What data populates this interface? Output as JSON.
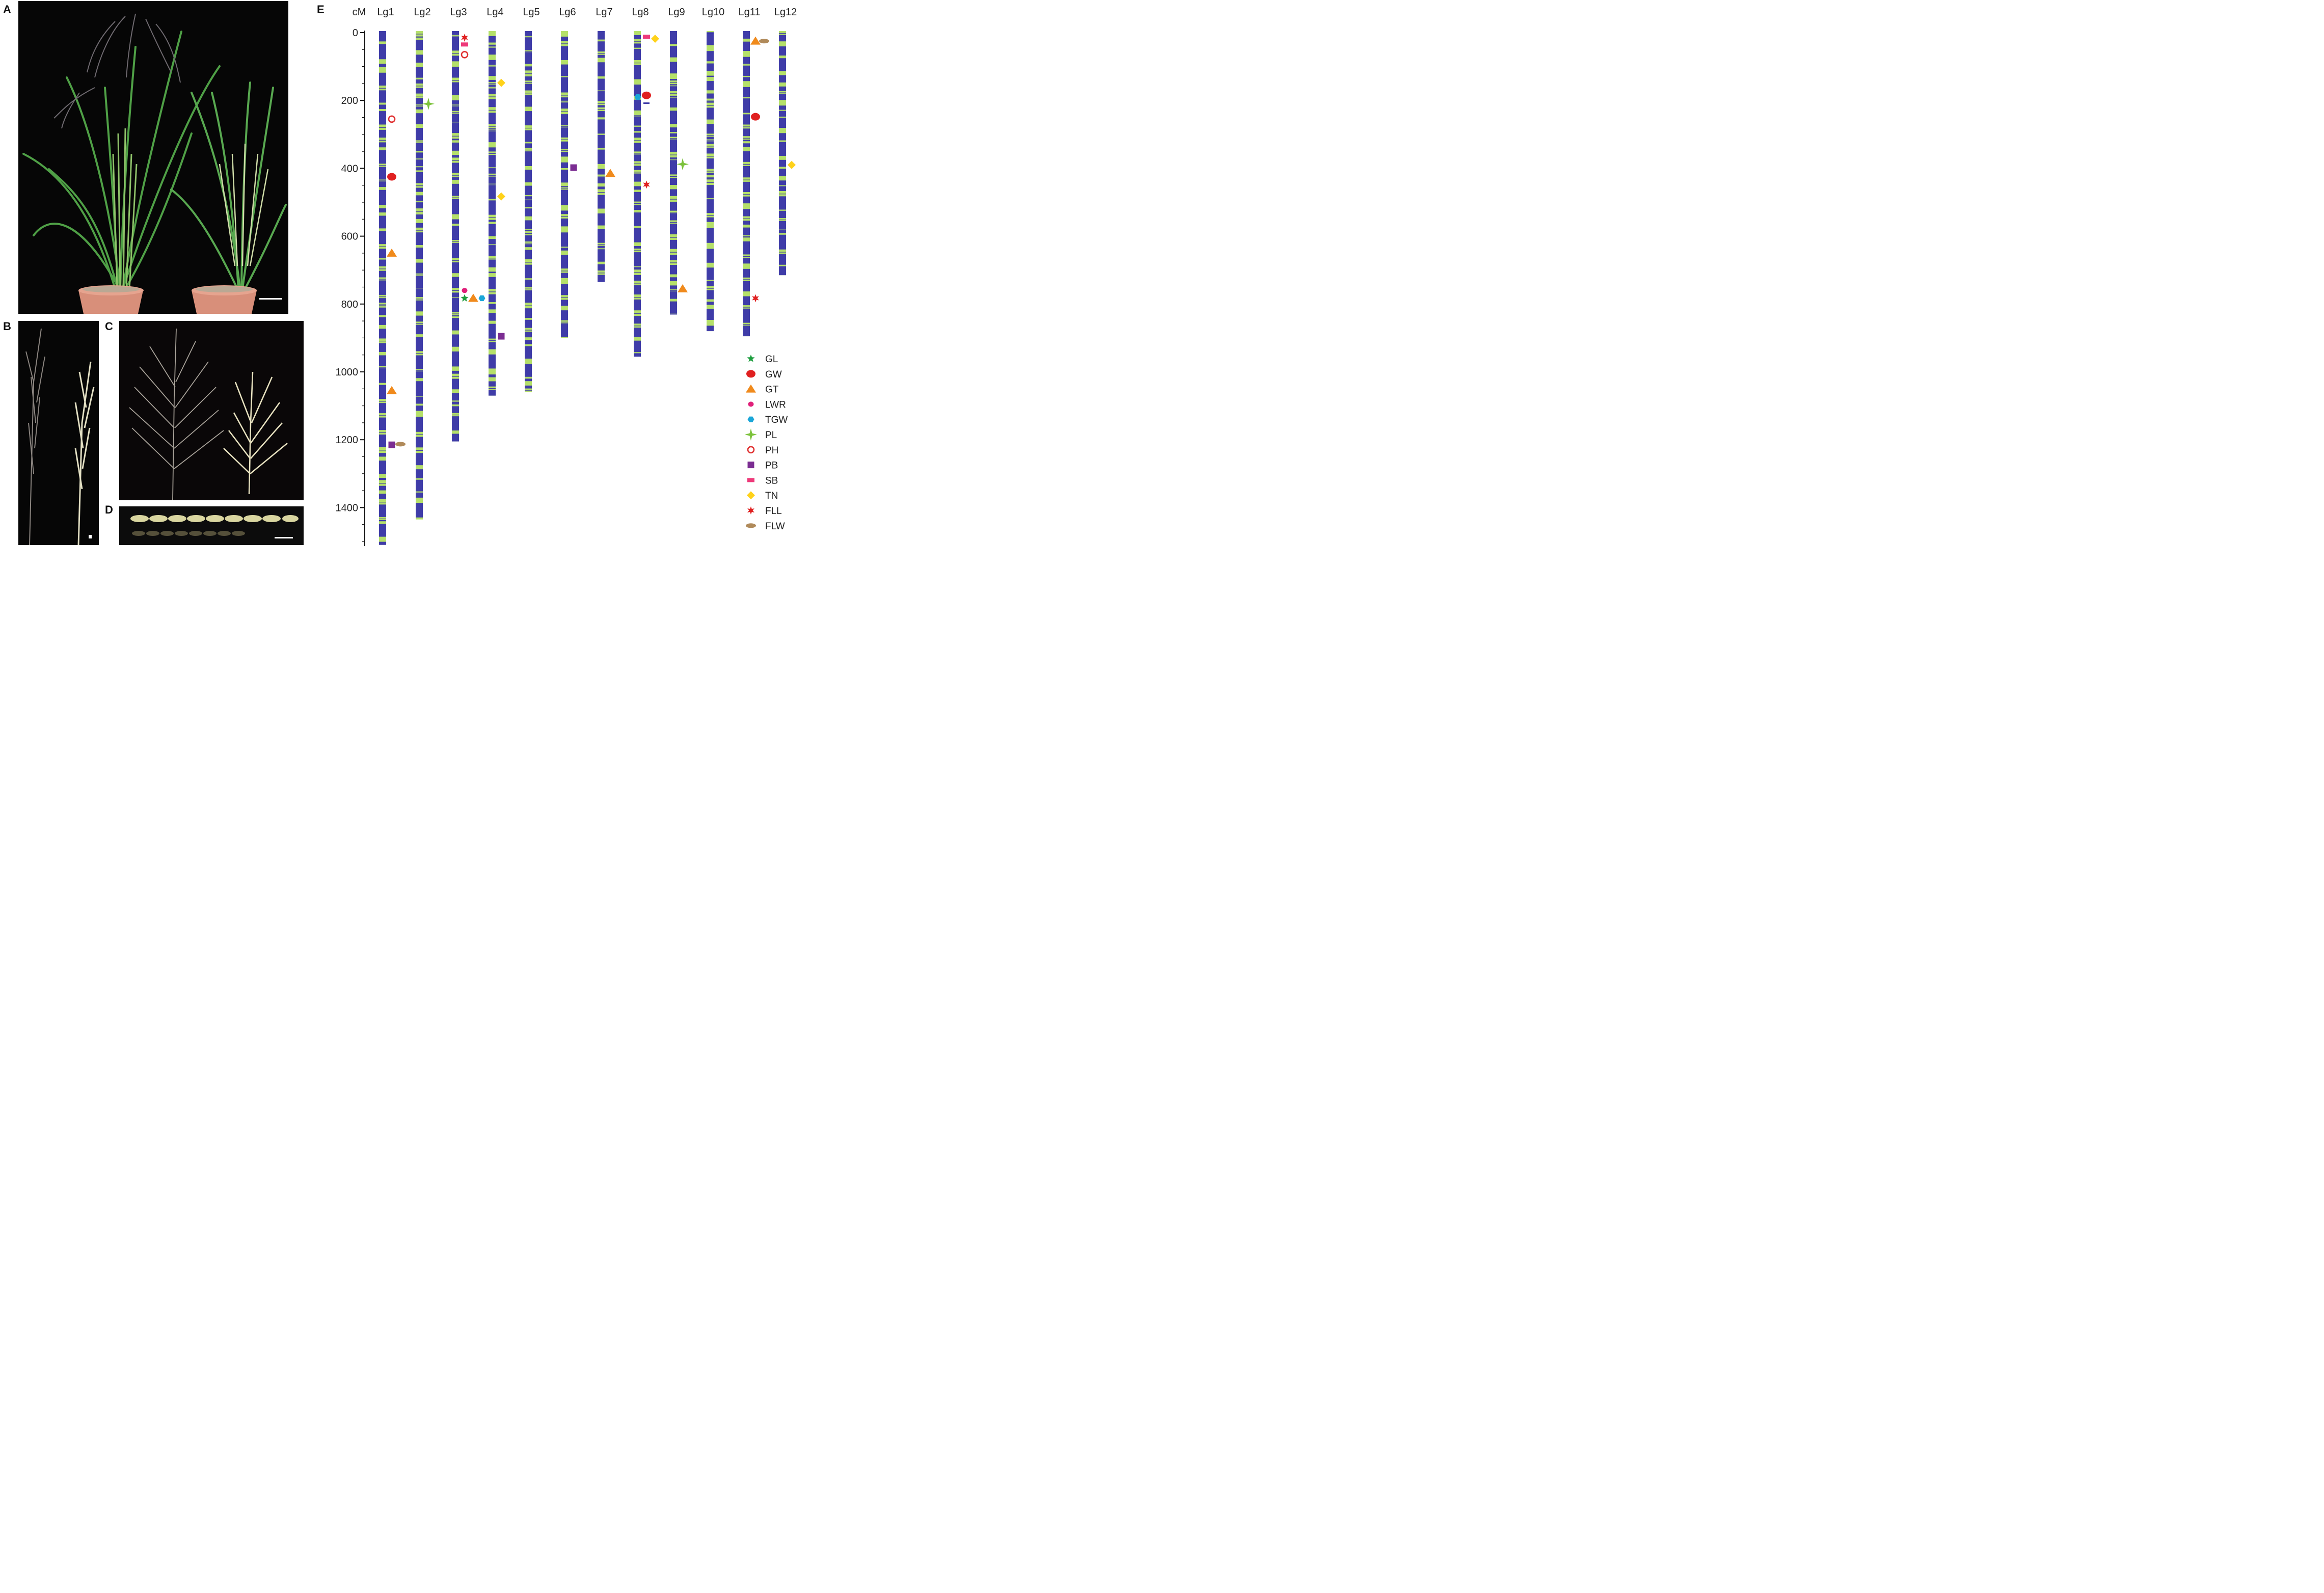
{
  "panels": {
    "a": "A",
    "b": "B",
    "c": "C",
    "d": "D",
    "e": "E"
  },
  "photo_descriptions": {
    "a": "",
    "b": "",
    "c": "",
    "d": ""
  },
  "colors": {
    "chrom_dark": "#3f3ca8",
    "chrom_light": "#b5e06a",
    "GL": "#1e9e3f",
    "GW": "#e02020",
    "GT": "#f08a1c",
    "LWR": "#e0207a",
    "TGW": "#1aa6d8",
    "PL": "#7cc23b",
    "PH": "#e03030",
    "PB": "#7b2d92",
    "SB": "#ee3a7a",
    "TN": "#ffd21a",
    "FLL": "#e02020",
    "FLW": "#b08a5a"
  },
  "chart_data": {
    "type": "genetic_linkage_map",
    "ylabel": "cM",
    "y_ticks": [
      "0",
      "200",
      "400",
      "600",
      "800",
      "1000",
      "1200",
      "1400"
    ],
    "ylim": [
      0,
      1510
    ],
    "linkage_groups": [
      {
        "name": "Lg1",
        "length": 1510
      },
      {
        "name": "Lg2",
        "length": 1435
      },
      {
        "name": "Lg3",
        "length": 1205
      },
      {
        "name": "Lg4",
        "length": 1070
      },
      {
        "name": "Lg5",
        "length": 1060
      },
      {
        "name": "Lg6",
        "length": 900
      },
      {
        "name": "Lg7",
        "length": 735
      },
      {
        "name": "Lg8",
        "length": 955
      },
      {
        "name": "Lg9",
        "length": 830
      },
      {
        "name": "Lg10",
        "length": 880
      },
      {
        "name": "Lg11",
        "length": 895
      },
      {
        "name": "Lg12",
        "length": 715
      }
    ],
    "qtl": [
      {
        "lg": "Lg1",
        "trait": "PH",
        "pos": 255,
        "slot": 0
      },
      {
        "lg": "Lg1",
        "trait": "GW",
        "pos": 425,
        "slot": 0
      },
      {
        "lg": "Lg1",
        "trait": "GT",
        "pos": 650,
        "slot": 0
      },
      {
        "lg": "Lg1",
        "trait": "GT",
        "pos": 1055,
        "slot": 0
      },
      {
        "lg": "Lg1",
        "trait": "PB",
        "pos": 1215,
        "slot": 0
      },
      {
        "lg": "Lg1",
        "trait": "FLW",
        "pos": 1213,
        "slot": 1
      },
      {
        "lg": "Lg2",
        "trait": "PL",
        "pos": 210,
        "slot": 0
      },
      {
        "lg": "Lg3",
        "trait": "FLL",
        "pos": 15,
        "slot": 0
      },
      {
        "lg": "Lg3",
        "trait": "SB",
        "pos": 35,
        "slot": 0
      },
      {
        "lg": "Lg3",
        "trait": "PH",
        "pos": 65,
        "slot": 0
      },
      {
        "lg": "Lg3",
        "trait": "LWR",
        "pos": 760,
        "slot": 0
      },
      {
        "lg": "Lg3",
        "trait": "GL",
        "pos": 783,
        "slot": 0
      },
      {
        "lg": "Lg3",
        "trait": "GT",
        "pos": 783,
        "slot": 1
      },
      {
        "lg": "Lg3",
        "trait": "TGW",
        "pos": 783,
        "slot": 2
      },
      {
        "lg": "Lg4",
        "trait": "TN",
        "pos": 148,
        "slot": 0
      },
      {
        "lg": "Lg4",
        "trait": "TN",
        "pos": 483,
        "slot": 0
      },
      {
        "lg": "Lg4",
        "trait": "PB",
        "pos": 895,
        "slot": 0
      },
      {
        "lg": "Lg6",
        "trait": "PB",
        "pos": 398,
        "slot": 0
      },
      {
        "lg": "Lg7",
        "trait": "GT",
        "pos": 415,
        "slot": 0
      },
      {
        "lg": "Lg8",
        "trait": "SB",
        "pos": 12,
        "slot": 0
      },
      {
        "lg": "Lg8",
        "trait": "TN",
        "pos": 18,
        "slot": 1
      },
      {
        "lg": "Lg8",
        "trait": "TGW",
        "pos": 190,
        "slot": -1
      },
      {
        "lg": "Lg8",
        "trait": "GW",
        "pos": 185,
        "slot": 0
      },
      {
        "lg": "Lg8",
        "trait": "LINE",
        "pos": 208,
        "slot": 0
      },
      {
        "lg": "Lg8",
        "trait": "FLL",
        "pos": 448,
        "slot": 0
      },
      {
        "lg": "Lg9",
        "trait": "PL",
        "pos": 388,
        "slot": 0
      },
      {
        "lg": "Lg9",
        "trait": "GT",
        "pos": 755,
        "slot": 0
      },
      {
        "lg": "Lg11",
        "trait": "GT",
        "pos": 25,
        "slot": 0
      },
      {
        "lg": "Lg11",
        "trait": "FLW",
        "pos": 25,
        "slot": 1
      },
      {
        "lg": "Lg11",
        "trait": "GW",
        "pos": 248,
        "slot": 0
      },
      {
        "lg": "Lg11",
        "trait": "FLL",
        "pos": 783,
        "slot": 0
      },
      {
        "lg": "Lg12",
        "trait": "TN",
        "pos": 390,
        "slot": 0
      }
    ],
    "legend": [
      {
        "key": "GL",
        "label": "GL"
      },
      {
        "key": "GW",
        "label": "GW"
      },
      {
        "key": "GT",
        "label": "GT"
      },
      {
        "key": "LWR",
        "label": "LWR"
      },
      {
        "key": "TGW",
        "label": "TGW"
      },
      {
        "key": "PL",
        "label": "PL"
      },
      {
        "key": "PH",
        "label": "PH"
      },
      {
        "key": "PB",
        "label": "PB"
      },
      {
        "key": "SB",
        "label": "SB"
      },
      {
        "key": "TN",
        "label": "TN"
      },
      {
        "key": "FLL",
        "label": "FLL"
      },
      {
        "key": "FLW",
        "label": "FLW"
      }
    ]
  }
}
